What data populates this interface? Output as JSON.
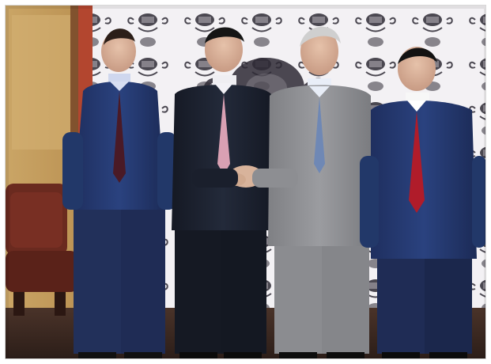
{
  "image": {
    "kind": "photograph",
    "subject_count": 4,
    "colors": {
      "backdrop": "#f3f1f4",
      "backdrop_pattern": "#2e2a35",
      "wall_left": "#c99f5a",
      "wall_trim": "#7a4a2a",
      "door_red": "#b3462f",
      "floor": "#3b2b24",
      "chair": "#6a2a1f",
      "suit_navy": "#253a71",
      "suit_dark": "#1d2230",
      "suit_grey": "#8e8f92",
      "tie_red": "#b01c2a",
      "tie_burgundy": "#4a1a26",
      "tie_pink": "#d9a0b3",
      "tie_blue": "#6f88b5",
      "skin": "#d9b39c"
    }
  }
}
